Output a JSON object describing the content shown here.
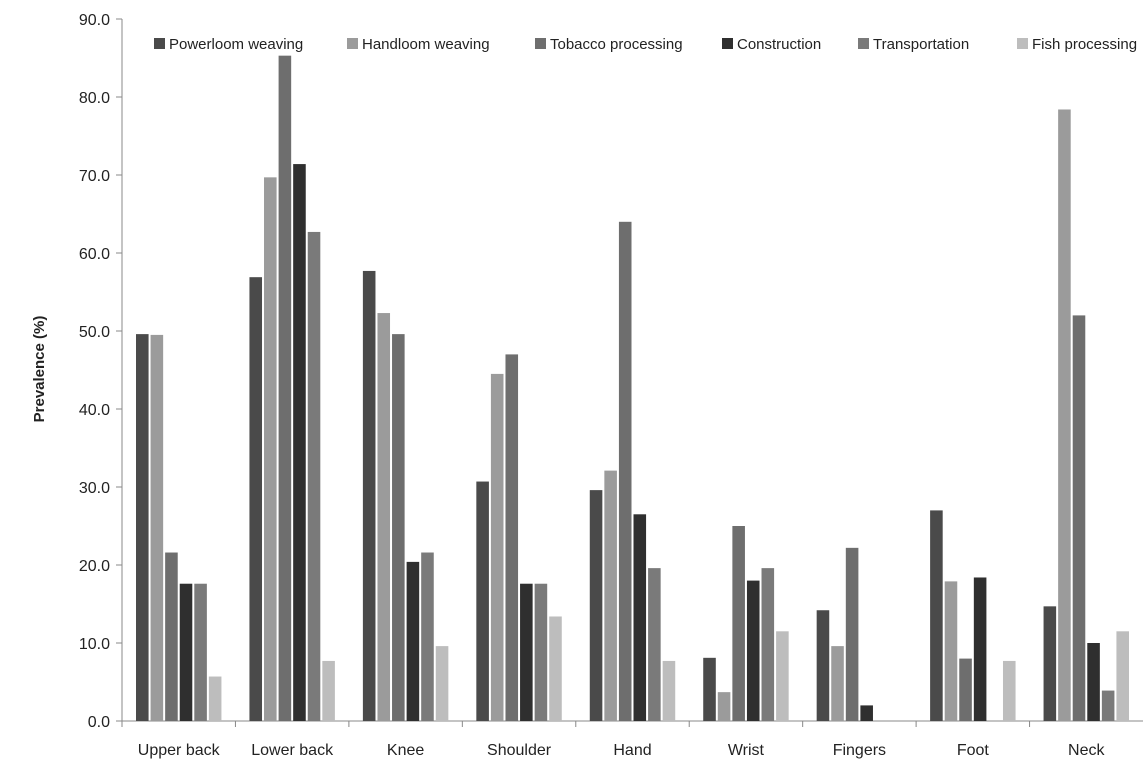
{
  "chart_data": {
    "type": "bar",
    "title": "",
    "xlabel": "",
    "ylabel": "Prevalence (%)",
    "ylim": [
      0,
      90
    ],
    "yticks": [
      "0.0",
      "10.0",
      "20.0",
      "30.0",
      "40.0",
      "50.0",
      "60.0",
      "70.0",
      "80.0",
      "90.0"
    ],
    "grid": false,
    "legend_position": "top",
    "categories": [
      "Upper back",
      "Lower back",
      "Knee",
      "Shoulder",
      "Hand",
      "Wrist",
      "Fingers",
      "Foot",
      "Neck"
    ],
    "series": [
      {
        "name": "Powerloom weaving",
        "color": "#4a4a4a",
        "values": [
          49.6,
          56.9,
          57.7,
          30.7,
          29.6,
          8.1,
          14.2,
          27.0,
          14.7
        ]
      },
      {
        "name": "Handloom weaving",
        "color": "#9b9b9b",
        "values": [
          49.5,
          69.7,
          52.3,
          44.5,
          32.1,
          3.7,
          9.6,
          17.9,
          78.4
        ]
      },
      {
        "name": "Tobacco processing",
        "color": "#6e6e6e",
        "values": [
          21.6,
          85.3,
          49.6,
          47.0,
          64.0,
          25.0,
          22.2,
          8.0,
          52.0
        ]
      },
      {
        "name": "Construction",
        "color": "#2f2f2f",
        "values": [
          17.6,
          71.4,
          20.4,
          17.6,
          26.5,
          18.0,
          2.0,
          18.4,
          10.0
        ]
      },
      {
        "name": "Transportation",
        "color": "#7a7a7a",
        "values": [
          17.6,
          62.7,
          21.6,
          17.6,
          19.6,
          19.6,
          0,
          0,
          3.9
        ]
      },
      {
        "name": "Fish processing",
        "color": "#bdbdbd",
        "values": [
          5.7,
          7.7,
          9.6,
          13.4,
          7.7,
          11.5,
          0,
          7.7,
          11.5
        ]
      }
    ]
  }
}
